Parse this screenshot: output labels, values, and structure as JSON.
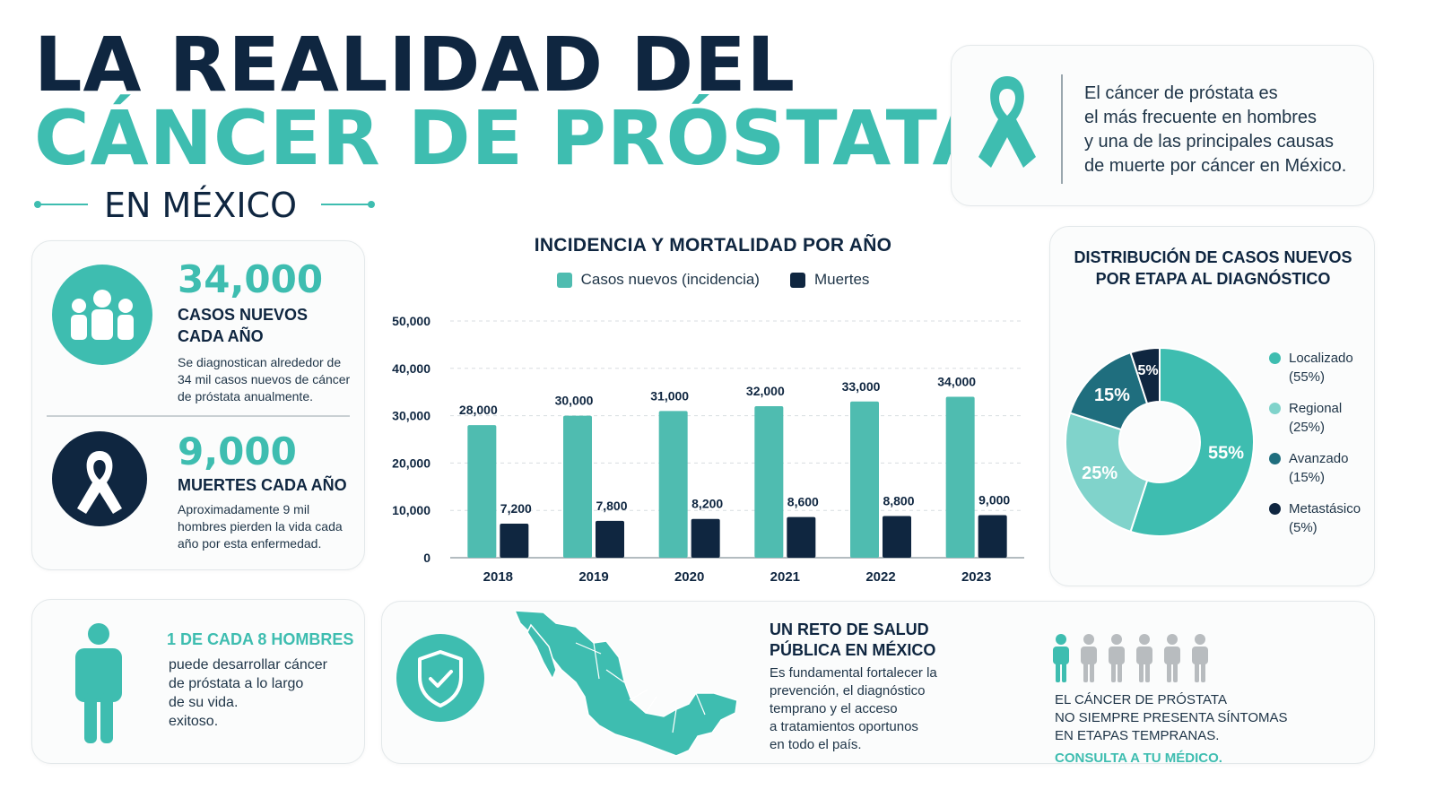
{
  "header": {
    "title_line1": "LA REALIDAD DEL",
    "title_line2": "CÁNCER DE PRÓSTATA",
    "subtitle": "EN MÉXICO"
  },
  "intro": {
    "lines": [
      "El cáncer de próstata es",
      "el más frecuente en hombres",
      "y una de las principales causas",
      "de muerte por cáncer en México."
    ]
  },
  "stats": {
    "cases": {
      "number": "34,000",
      "label_lines": [
        "CASOS NUEVOS",
        "CADA AÑO"
      ],
      "desc_lines": [
        "Se diagnostican alrededor de",
        "34 mil casos nuevos de cáncer",
        "de próstata anualmente."
      ]
    },
    "deaths": {
      "number": "9,000",
      "label": "MUERTES CADA AÑO",
      "desc_lines": [
        "Aproximadamente 9 mil",
        "hombres pierden la vida cada",
        "año por esta enfermedad."
      ]
    }
  },
  "chart_data": [
    {
      "type": "bar",
      "title": "INCIDENCIA Y MORTALIDAD POR AÑO",
      "categories": [
        "2018",
        "2019",
        "2020",
        "2021",
        "2022",
        "2023"
      ],
      "series": [
        {
          "name": "Casos nuevos (incidencia)",
          "values": [
            28000,
            30000,
            31000,
            32000,
            33000,
            34000
          ],
          "labels": [
            "28,000",
            "30,000",
            "31,000",
            "32,000",
            "33,000",
            "34,000"
          ],
          "color": "#4fbcb0"
        },
        {
          "name": "Muertes",
          "values": [
            7200,
            7800,
            8200,
            8600,
            8800,
            9000
          ],
          "labels": [
            "7,200",
            "7,800",
            "8,200",
            "8,600",
            "8,800",
            "9,000"
          ],
          "color": "#0f2640"
        }
      ],
      "ylim": [
        0,
        50000
      ],
      "yticks": [
        0,
        10000,
        20000,
        30000,
        40000,
        50000
      ],
      "ytick_labels": [
        "0",
        "10,000",
        "20,000",
        "30,000",
        "40,000",
        "50,000"
      ],
      "grid": true,
      "legend": "top"
    },
    {
      "type": "pie",
      "title_lines": [
        "DISTRIBUCIÓN DE CASOS NUEVOS",
        "POR ETAPA AL DIAGNÓSTICO"
      ],
      "slices": [
        {
          "name": "Localizado",
          "value": 55,
          "label": "55%",
          "legend": "(55%)",
          "color": "#3ebdb0"
        },
        {
          "name": "Regional",
          "value": 25,
          "label": "25%",
          "legend": "(25%)",
          "color": "#80d3cb"
        },
        {
          "name": "Avanzado",
          "value": 15,
          "label": "15%",
          "legend": "(15%)",
          "color": "#1f6e7e"
        },
        {
          "name": "Metastásico",
          "value": 5,
          "label": "5%",
          "legend": "(5%)",
          "color": "#0f2640"
        }
      ],
      "legend": "right"
    }
  ],
  "bottom": {
    "ratio": {
      "head": "1 DE CADA 8 HOMBRES",
      "lines": [
        "puede desarrollar cáncer",
        "de próstata a lo largo",
        "de su vida.",
        "exitoso."
      ]
    },
    "reto": {
      "title_lines": [
        "UN RETO DE SALUD",
        "PÚBLICA EN MÉXICO"
      ],
      "lines": [
        "Es fundamental fortalecer la",
        "prevención, el diagnóstico",
        "temprano y el acceso",
        "a tratamientos oportunos",
        "en todo el país."
      ]
    },
    "symptoms": {
      "lines": [
        "EL CÁNCER DE PRÓSTATA",
        "NO SIEMPRE PRESENTA SÍNTOMAS",
        "EN ETAPAS TEMPRANAS."
      ],
      "cta": "CONSULTA A TU MÉDICO."
    }
  },
  "colors": {
    "teal": "#3ebdb0",
    "navy": "#0f2640",
    "light_teal": "#80d3cb",
    "gray": "#b8bcbf"
  },
  "icons": [
    "ribbon-icon",
    "people-group-icon",
    "ribbon-circle-icon",
    "person-icon",
    "shield-check-icon",
    "mexico-map-icon",
    "people-row-icon"
  ]
}
